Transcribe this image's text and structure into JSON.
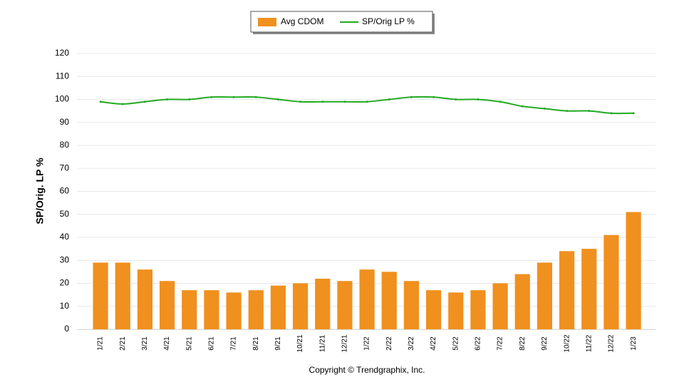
{
  "chart_data": {
    "type": "bar_line",
    "y_axis_label": "SP/Orig. LP %",
    "footer": "Copyright © Trendgraphix, Inc.",
    "categories": [
      "1/21",
      "2/21",
      "3/21",
      "4/21",
      "5/21",
      "6/21",
      "7/21",
      "8/21",
      "9/21",
      "10/21",
      "11/21",
      "12/21",
      "1/22",
      "2/22",
      "3/22",
      "4/22",
      "5/22",
      "6/22",
      "7/22",
      "8/22",
      "9/22",
      "10/22",
      "11/22",
      "12/22",
      "1/23"
    ],
    "series": [
      {
        "name": "Avg CDOM",
        "type": "bar",
        "color": "#f0901e",
        "values": [
          29,
          29,
          26,
          21,
          17,
          17,
          16,
          17,
          19,
          20,
          22,
          21,
          26,
          25,
          21,
          17,
          16,
          17,
          20,
          24,
          29,
          34,
          35,
          41,
          51
        ]
      },
      {
        "name": "SP/Orig LP %",
        "type": "line",
        "color": "#22aa22",
        "values": [
          99,
          98,
          99,
          100,
          100,
          101,
          101,
          101,
          100,
          99,
          99,
          99,
          99,
          100,
          101,
          101,
          100,
          100,
          99,
          97,
          96,
          95,
          95,
          94,
          94
        ]
      }
    ],
    "ylim": [
      0,
      120
    ],
    "yticks": [
      0,
      10,
      20,
      30,
      40,
      50,
      60,
      70,
      80,
      90,
      100,
      110,
      120
    ],
    "grid": true,
    "legend": "top"
  }
}
